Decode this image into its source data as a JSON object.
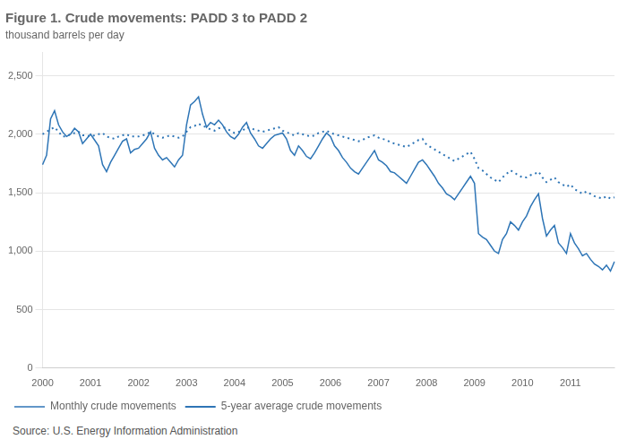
{
  "chart_data": {
    "type": "line",
    "title": "Figure 1. Crude movements: PADD 3 to PADD 2",
    "subtitle": "thousand barrels per day",
    "source": "Source: U.S. Energy Information Administration",
    "categories": [
      "2000",
      null,
      null,
      null,
      null,
      null,
      null,
      null,
      null,
      null,
      null,
      null,
      "2001",
      null,
      null,
      null,
      null,
      null,
      null,
      null,
      null,
      null,
      null,
      null,
      "2002",
      null,
      null,
      null,
      null,
      null,
      null,
      null,
      null,
      null,
      null,
      null,
      "2003",
      null,
      null,
      null,
      null,
      null,
      null,
      null,
      null,
      null,
      null,
      null,
      "2004",
      null,
      null,
      null,
      null,
      null,
      null,
      null,
      null,
      null,
      null,
      null,
      "2005",
      null,
      null,
      null,
      null,
      null,
      null,
      null,
      null,
      null,
      null,
      null,
      "2006",
      null,
      null,
      null,
      null,
      null,
      null,
      null,
      null,
      null,
      null,
      null,
      "2007",
      null,
      null,
      null,
      null,
      null,
      null,
      null,
      null,
      null,
      null,
      null,
      "2008",
      null,
      null,
      null,
      null,
      null,
      null,
      null,
      null,
      null,
      null,
      null,
      "2009",
      null,
      null,
      null,
      null,
      null,
      null,
      null,
      null,
      null,
      null,
      null,
      "2010",
      null,
      null,
      null,
      null,
      null,
      null,
      null,
      null,
      null,
      null,
      null,
      "2011",
      null,
      null,
      null,
      null,
      null,
      null,
      null,
      null,
      null,
      null,
      null
    ],
    "series": [
      {
        "name": "Monthly crude movements",
        "color": "#2E75B6",
        "line_style": "solid",
        "values": [
          1740,
          1820,
          2130,
          2200,
          2080,
          2020,
          1980,
          2000,
          2050,
          2020,
          1920,
          1960,
          2000,
          1950,
          1900,
          1740,
          1680,
          1760,
          1820,
          1880,
          1940,
          1960,
          1840,
          1870,
          1880,
          1920,
          1960,
          2020,
          1880,
          1820,
          1780,
          1800,
          1760,
          1720,
          1780,
          1820,
          2080,
          2250,
          2280,
          2320,
          2170,
          2060,
          2100,
          2080,
          2120,
          2080,
          2020,
          1980,
          1960,
          2000,
          2060,
          2100,
          2010,
          1960,
          1900,
          1880,
          1920,
          1960,
          1990,
          2000,
          2010,
          1960,
          1860,
          1820,
          1900,
          1860,
          1810,
          1790,
          1840,
          1900,
          1960,
          2010,
          1980,
          1900,
          1860,
          1800,
          1760,
          1710,
          1680,
          1660,
          1710,
          1760,
          1810,
          1860,
          1780,
          1760,
          1730,
          1680,
          1670,
          1640,
          1610,
          1580,
          1640,
          1700,
          1760,
          1780,
          1740,
          1690,
          1640,
          1580,
          1540,
          1490,
          1470,
          1440,
          1490,
          1540,
          1590,
          1640,
          1580,
          1150,
          1120,
          1100,
          1050,
          1000,
          980,
          1100,
          1150,
          1250,
          1220,
          1180,
          1250,
          1300,
          1380,
          1440,
          1490,
          1280,
          1130,
          1180,
          1220,
          1070,
          1030,
          980,
          1150,
          1070,
          1020,
          960,
          980,
          930,
          890,
          870,
          840,
          880,
          830,
          910
        ]
      },
      {
        "name": "5-year average crude movements",
        "color": "#2E75B6",
        "line_style": "dotted",
        "values": [
          2000,
          2020,
          2040,
          2060,
          2020,
          1980,
          1980,
          2000,
          2010,
          2020,
          1990,
          1990,
          1980,
          1990,
          2000,
          2010,
          1980,
          1970,
          1960,
          1980,
          1990,
          2000,
          1980,
          1980,
          1980,
          1990,
          2000,
          2020,
          2000,
          1980,
          1970,
          1980,
          1990,
          1980,
          1970,
          1980,
          2020,
          2060,
          2070,
          2090,
          2070,
          2060,
          2040,
          2030,
          2050,
          2060,
          2050,
          2030,
          2010,
          2020,
          2030,
          2060,
          2050,
          2040,
          2030,
          2020,
          2030,
          2040,
          2050,
          2060,
          2030,
          2020,
          2000,
          1990,
          2010,
          2000,
          1990,
          1980,
          1990,
          2010,
          2020,
          2030,
          2010,
          2000,
          1990,
          1980,
          1970,
          1960,
          1950,
          1940,
          1950,
          1970,
          1980,
          1990,
          1970,
          1960,
          1950,
          1930,
          1920,
          1910,
          1900,
          1890,
          1910,
          1930,
          1950,
          1960,
          1910,
          1890,
          1870,
          1850,
          1830,
          1810,
          1790,
          1770,
          1790,
          1810,
          1830,
          1850,
          1790,
          1710,
          1690,
          1660,
          1630,
          1610,
          1590,
          1630,
          1660,
          1690,
          1670,
          1650,
          1630,
          1630,
          1650,
          1660,
          1680,
          1630,
          1590,
          1610,
          1630,
          1590,
          1570,
          1550,
          1570,
          1530,
          1510,
          1490,
          1510,
          1490,
          1470,
          1460,
          1450,
          1470,
          1450,
          1460
        ]
      }
    ],
    "ylim": [
      0,
      2700
    ],
    "yticks": [
      0,
      500,
      {
        "value": 1000,
        "label": "1,000"
      },
      {
        "value": 1500,
        "label": "1,500"
      },
      {
        "value": 2000,
        "label": "2,000"
      },
      {
        "value": 2500,
        "label": "2,500"
      }
    ],
    "grid": true,
    "legend": "lower left"
  }
}
